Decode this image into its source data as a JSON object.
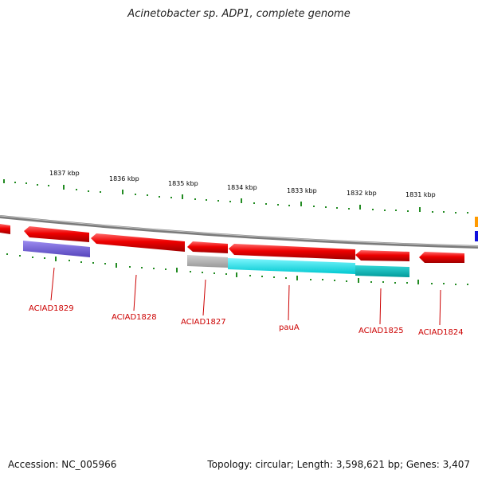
{
  "title": "Acinetobacter sp. ADP1, complete genome",
  "footer": {
    "accession": "Accession: NC_005966",
    "stats": "Topology: circular; Length: 3,598,621 bp; Genes: 3,407"
  },
  "scale": {
    "ticks": [
      "1837 kbp",
      "1836 kbp",
      "1835 kbp",
      "1834 kbp",
      "1833 kbp",
      "1832 kbp",
      "1831 kbp"
    ]
  },
  "genes": [
    "ACIAD1829",
    "ACIAD1828",
    "ACIAD1827",
    "pauA",
    "ACIAD1825",
    "ACIAD1824"
  ],
  "colors": {
    "gene_red": "#ee0000",
    "cog_purple": "#6a5acd",
    "cog_gray": "#b4b4b4",
    "cog_cyan": "#00e5ee",
    "cog_teal": "#00c2c2",
    "backbone": "#8a8a8a",
    "tick_green": "#228b22",
    "label_red": "#cc0000"
  }
}
